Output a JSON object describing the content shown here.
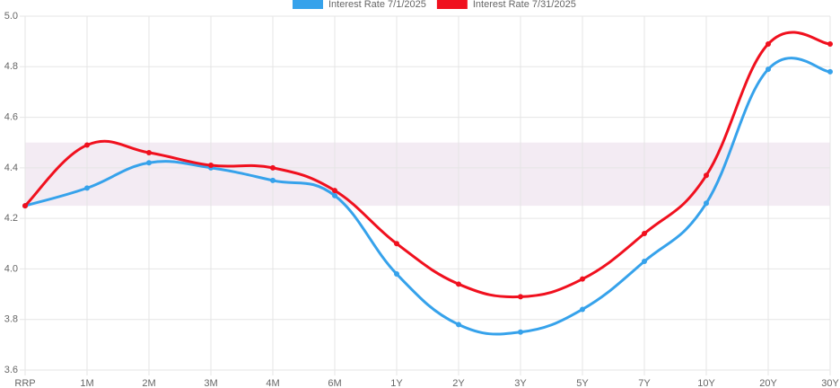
{
  "chart_data": {
    "type": "line",
    "categories": [
      "RRP",
      "1M",
      "2M",
      "3M",
      "4M",
      "6M",
      "1Y",
      "2Y",
      "3Y",
      "5Y",
      "7Y",
      "10Y",
      "20Y",
      "30Y"
    ],
    "series": [
      {
        "name": "Interest Rate 7/1/2025",
        "color": "#36a2eb",
        "values": [
          4.25,
          4.32,
          4.42,
          4.4,
          4.35,
          4.29,
          3.98,
          3.78,
          3.75,
          3.84,
          4.03,
          4.26,
          4.79,
          4.78
        ]
      },
      {
        "name": "Interest Rate 7/31/2025",
        "color": "#f0101e",
        "values": [
          4.25,
          4.49,
          4.46,
          4.41,
          4.4,
          4.31,
          4.1,
          3.94,
          3.89,
          3.96,
          4.14,
          4.37,
          4.89,
          4.89
        ]
      }
    ],
    "band": {
      "from": 4.25,
      "to": 4.5,
      "color": "#f3ebf3"
    },
    "ylim": [
      3.6,
      5.0
    ],
    "yticks": [
      3.6,
      3.8,
      {
        "value": 4,
        "label": "4.0"
      },
      4.2,
      4.4,
      4.6,
      4.8,
      {
        "value": 5,
        "label": "5.0"
      }
    ],
    "grid": true,
    "legend": "top"
  }
}
